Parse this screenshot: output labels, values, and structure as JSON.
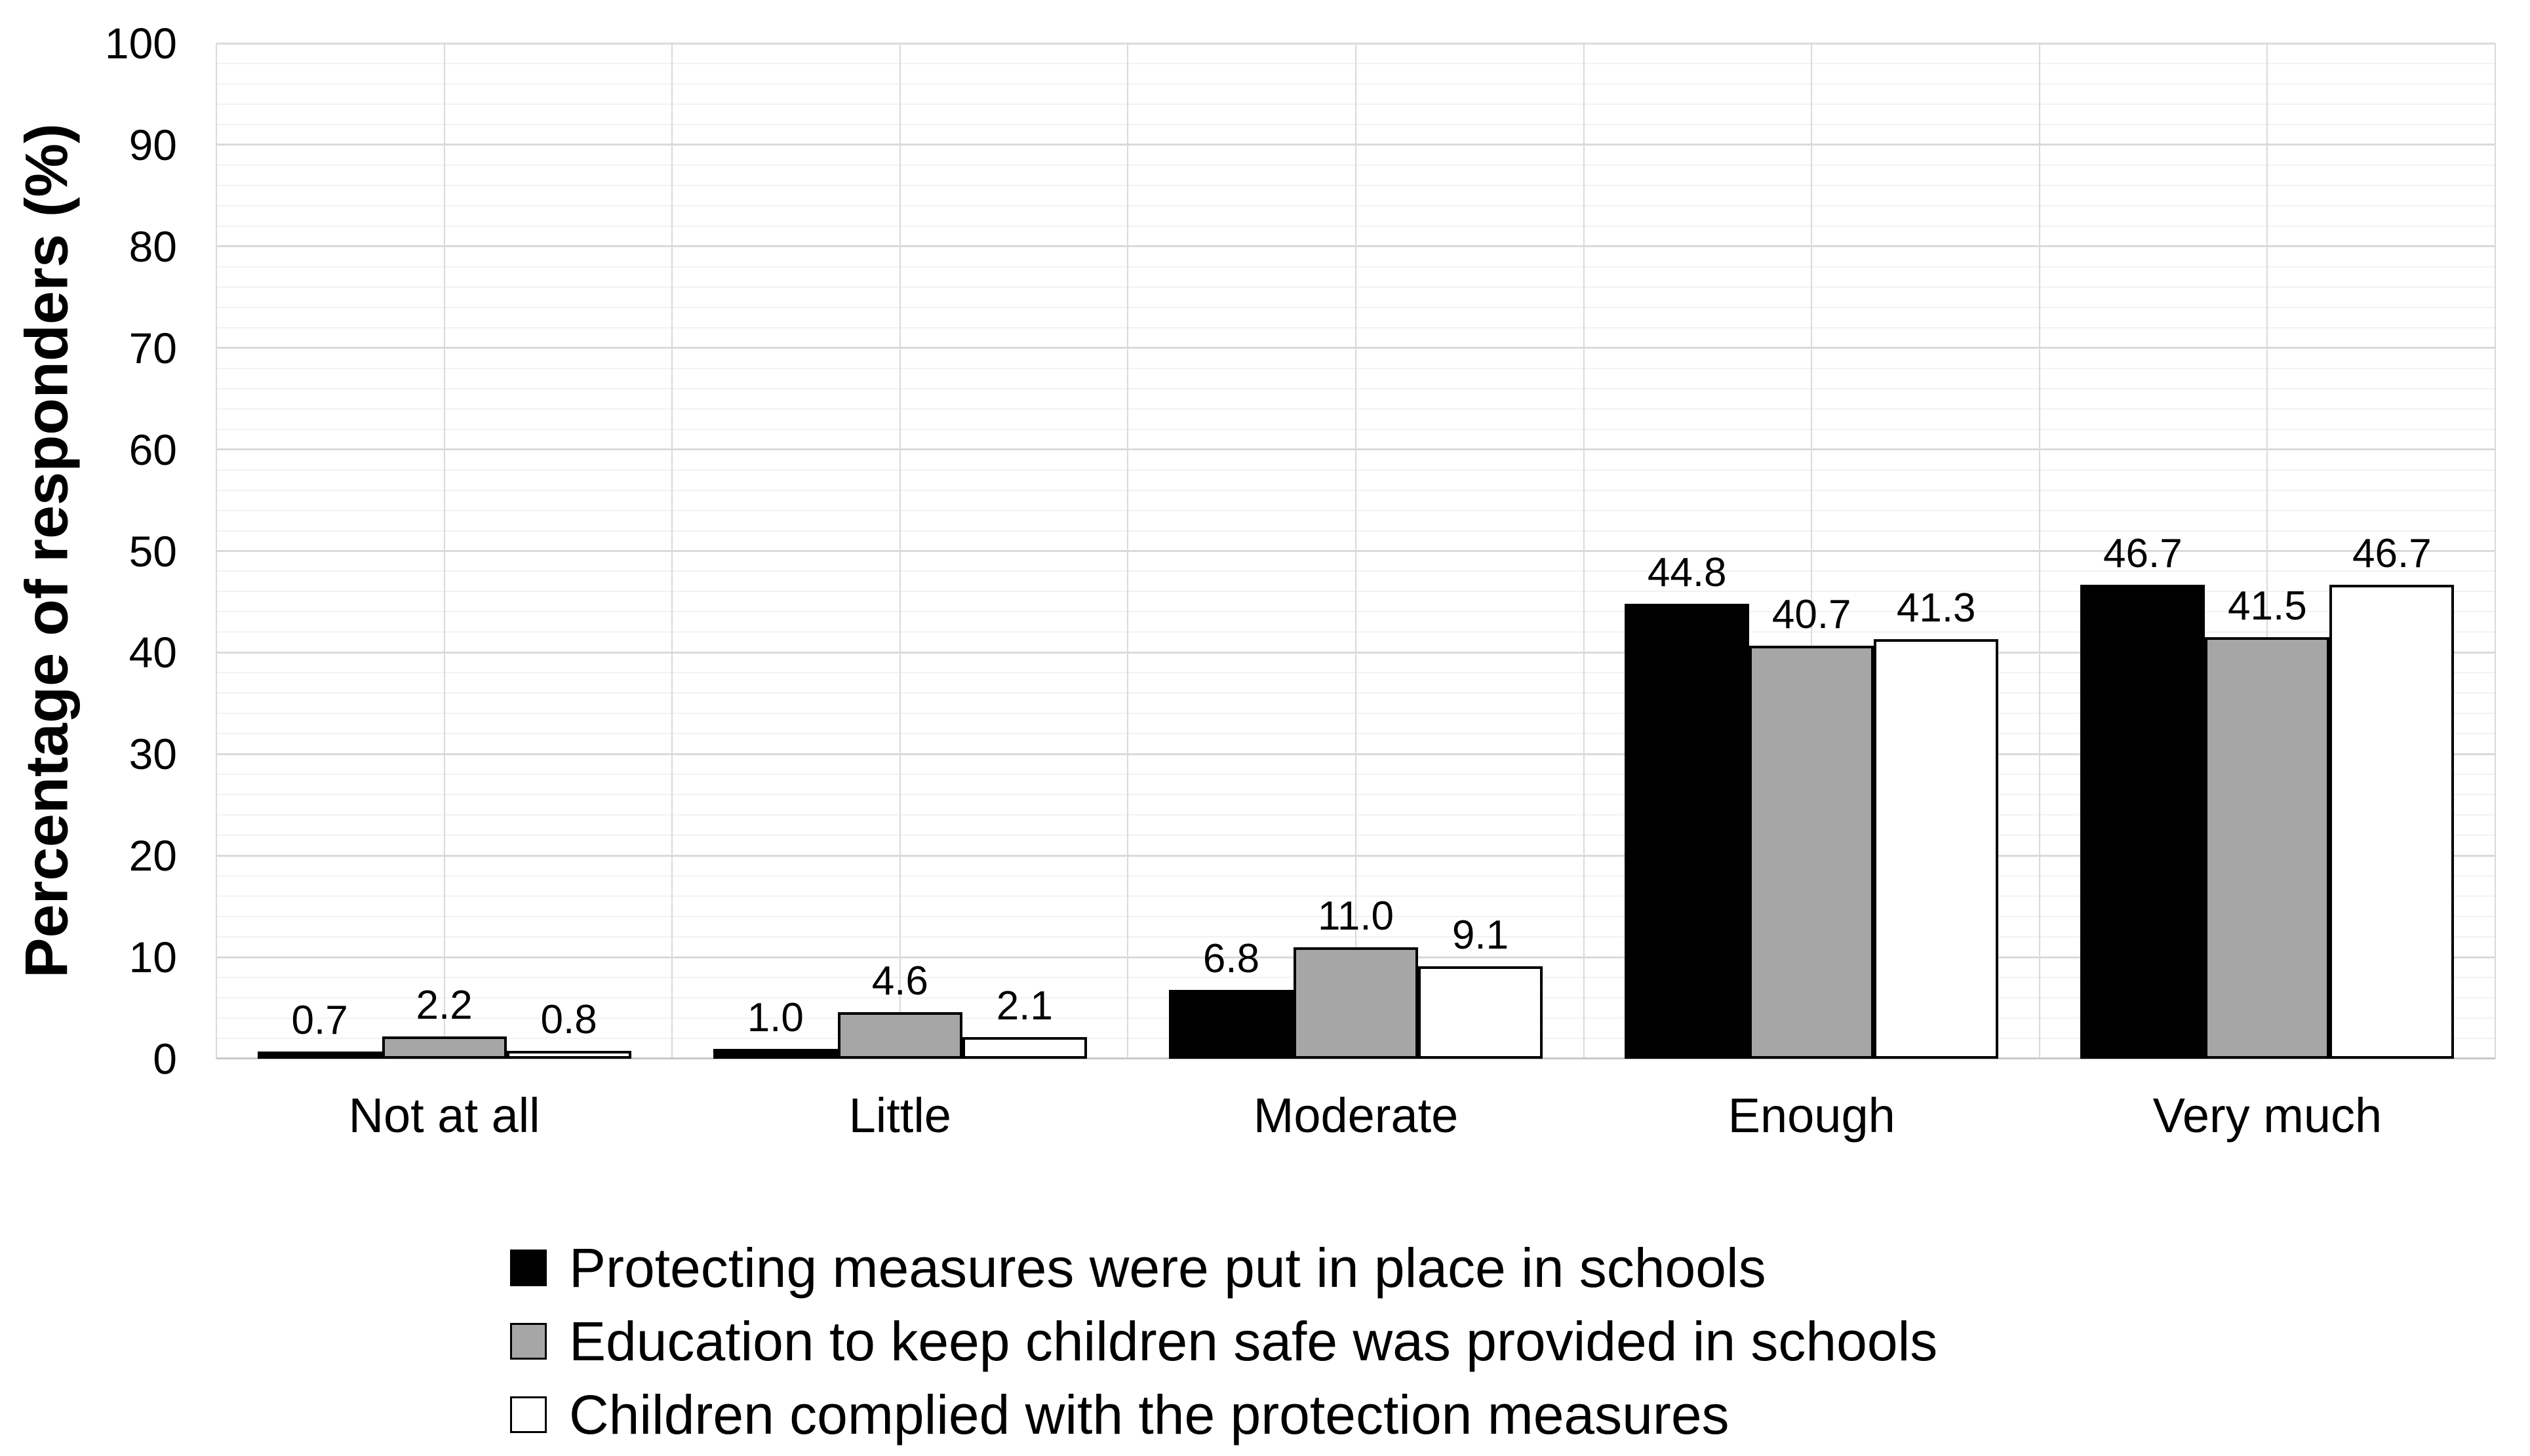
{
  "chart_data": {
    "type": "bar",
    "title": "",
    "xlabel": "",
    "ylabel": "Percentage of responders (%)",
    "ylim": [
      0,
      100
    ],
    "ytick_step": 10,
    "minor_ytick_step": 2,
    "yticks": [
      "0",
      "10",
      "20",
      "30",
      "40",
      "50",
      "60",
      "70",
      "80",
      "90",
      "100"
    ],
    "grid": {
      "horizontal_major": true,
      "horizontal_minor": true,
      "vertical_category": true
    },
    "legend_position": "bottom-left",
    "data_label_decimals": 1,
    "categories": [
      "Not at all",
      "Little",
      "Moderate",
      "Enough",
      "Very much"
    ],
    "series": [
      {
        "name": "Protecting measures were put in place in schools",
        "fill": "#000000",
        "values": [
          0.7,
          1.0,
          6.8,
          44.8,
          46.7
        ],
        "labels": [
          "0.7",
          "1.0",
          "6.8",
          "44.8",
          "46.7"
        ]
      },
      {
        "name": "Education to keep children safe was provided in schools",
        "fill": "#a6a6a6",
        "values": [
          2.2,
          4.6,
          11.0,
          40.7,
          41.5
        ],
        "labels": [
          "2.2",
          "4.6",
          "11.0",
          "40.7",
          "41.5"
        ]
      },
      {
        "name": "Children complied with the protection measures",
        "fill": "#ffffff",
        "values": [
          0.8,
          2.1,
          9.1,
          41.3,
          46.7
        ],
        "labels": [
          "0.8",
          "2.1",
          "9.1",
          "41.3",
          "46.7"
        ]
      }
    ],
    "colors": {
      "text": "#000000",
      "bar_border": "#000000",
      "gridline_major": "#dadada",
      "gridline_minor": "#f2f2f2",
      "axis_line": "#c8c8c8",
      "background": "#ffffff"
    }
  }
}
